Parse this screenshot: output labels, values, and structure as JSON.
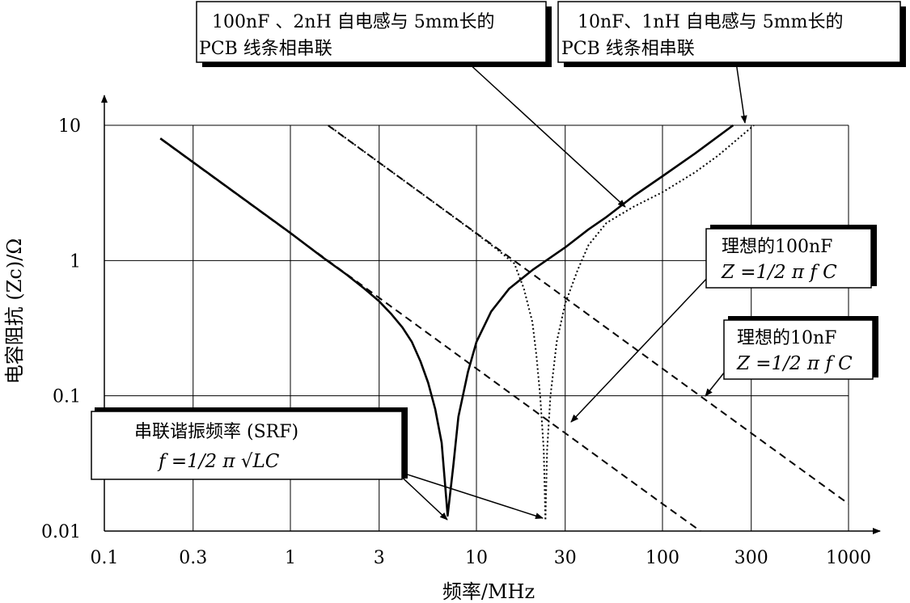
{
  "chart_data": {
    "type": "line",
    "xlabel": "频率/MHz",
    "ylabel": "电容阻抗 (Zc)/Ω",
    "x_scale": "log",
    "y_scale": "log",
    "xlim": [
      0.1,
      1000
    ],
    "ylim": [
      0.01,
      10
    ],
    "x_ticks": [
      "0.1",
      "0.3",
      "1",
      "3",
      "10",
      "30",
      "100",
      "300",
      "1000"
    ],
    "x_tick_values": [
      0.1,
      0.3,
      1,
      3,
      10,
      30,
      100,
      300,
      1000
    ],
    "y_ticks": [
      "0.01",
      "0.1",
      "1",
      "10"
    ],
    "y_tick_values": [
      0.01,
      0.1,
      1,
      10
    ],
    "grid": true,
    "series": [
      {
        "style": "solid-thick",
        "x": [
          0.2,
          0.5,
          1,
          1.5,
          2,
          2.5,
          3,
          3.5,
          4,
          4.5,
          5,
          5.5,
          6,
          6.5,
          7,
          7.5,
          8,
          9,
          10,
          12,
          15,
          20,
          30,
          40,
          50,
          70,
          100,
          150,
          240
        ],
        "y": [
          8.0,
          3.2,
          1.6,
          1.05,
          0.79,
          0.62,
          0.5,
          0.4,
          0.32,
          0.25,
          0.18,
          0.125,
          0.08,
          0.045,
          0.013,
          0.03,
          0.07,
          0.15,
          0.25,
          0.42,
          0.62,
          0.85,
          1.25,
          1.7,
          2.1,
          3.0,
          4.2,
          6.2,
          10
        ]
      },
      {
        "style": "dashed",
        "x": [
          0.2,
          1,
          10,
          100,
          160
        ],
        "y": [
          7.96,
          1.59,
          0.159,
          0.0159,
          0.01
        ]
      },
      {
        "style": "dotted",
        "x": [
          1.6,
          3,
          5,
          8,
          10,
          13,
          16,
          18,
          20,
          21,
          22,
          23,
          23.5,
          24,
          25,
          27,
          30,
          35,
          40,
          50,
          70,
          100,
          150,
          200,
          310
        ],
        "y": [
          10,
          5.3,
          3.18,
          1.98,
          1.58,
          1.2,
          0.95,
          0.62,
          0.35,
          0.2,
          0.1,
          0.04,
          0.012,
          0.04,
          0.1,
          0.25,
          0.48,
          0.85,
          1.3,
          1.9,
          2.5,
          3.2,
          4.5,
          6,
          10
        ]
      },
      {
        "style": "dashed",
        "x": [
          1.6,
          10,
          100,
          1000
        ],
        "y": [
          9.95,
          1.59,
          0.159,
          0.0159
        ]
      }
    ],
    "annotations": [
      {
        "line1": "100nF 、2nH 自电感与 5mm长的",
        "line2": "PCB 线条相串联"
      },
      {
        "line1": "10nF、1nH 自电感与 5mm长的",
        "line2": "PCB 线条相串联"
      },
      {
        "line1": "理想的100nF",
        "line2": "Z =1/2 π f C"
      },
      {
        "line1": "理想的10nF",
        "line2": "Z =1/2 π f C"
      },
      {
        "line1": "串联谐振频率 (SRF)",
        "line2": "f =1/2 π √LC"
      }
    ]
  }
}
